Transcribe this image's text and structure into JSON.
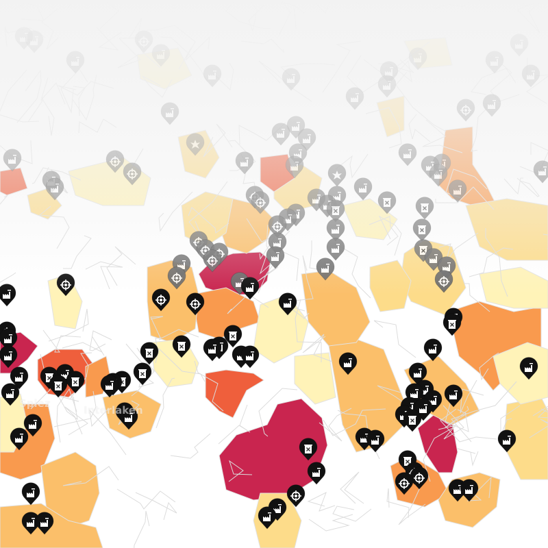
{
  "map": {
    "place_labels": [
      "Spiez",
      "Interlaken"
    ],
    "marker_types": [
      "factory-icon",
      "target-icon",
      "barrel-hazard-icon",
      "star-burst-icon"
    ],
    "choropleth_colors": {
      "none": "#ffffff",
      "low": "#fff3b8",
      "medium_low": "#fddc8a",
      "medium": "#fbbf6a",
      "medium_high": "#f99a4e",
      "high": "#ef5f3c",
      "very_high": "#c9254f"
    },
    "marker_colors": {
      "near": "#111111",
      "far": "#6b6b6b"
    }
  }
}
